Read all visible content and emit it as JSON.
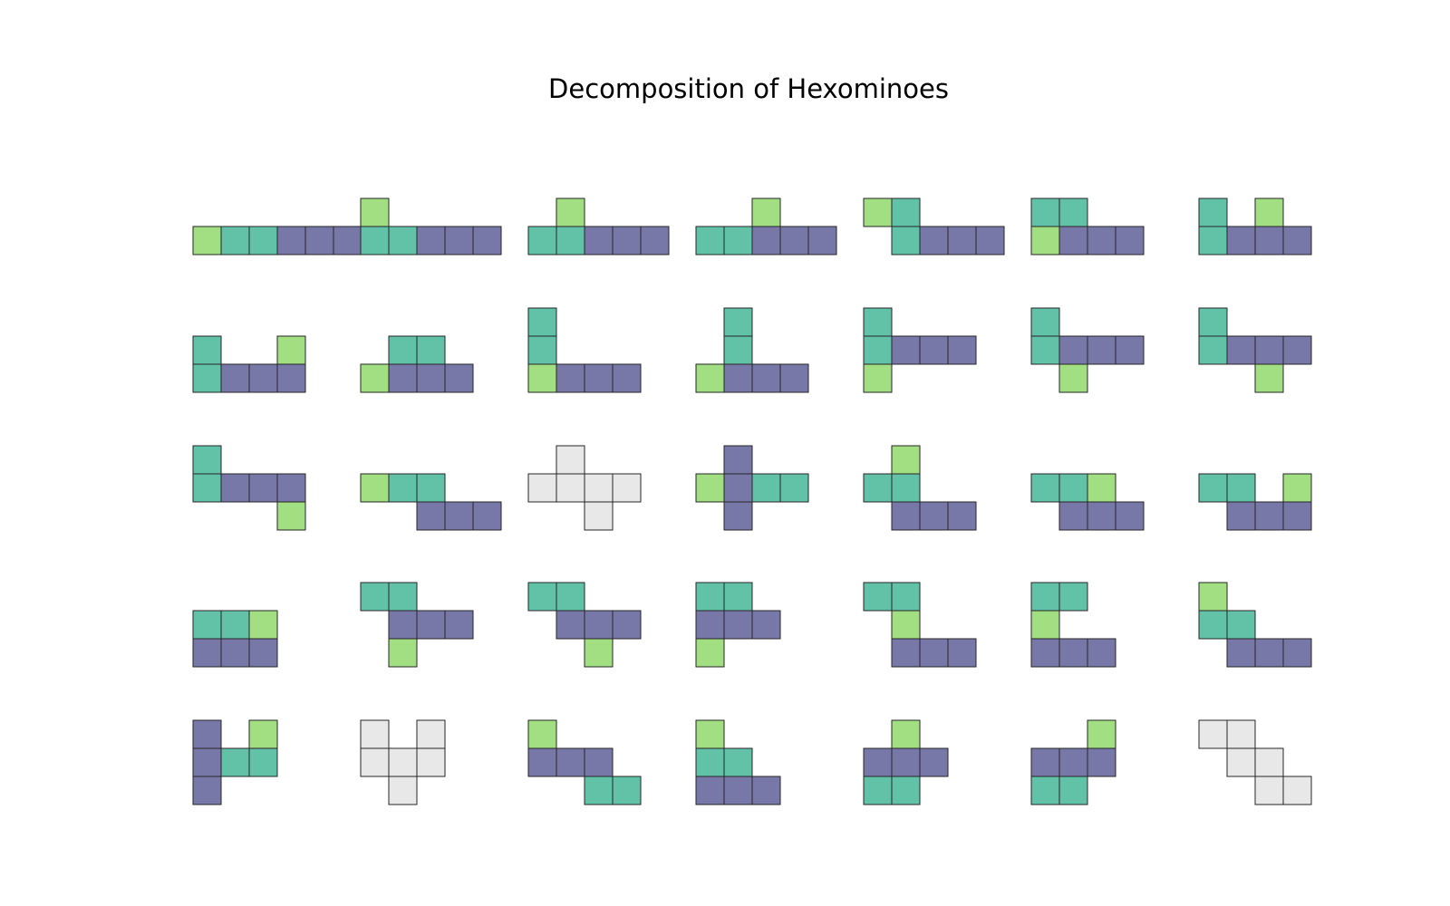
{
  "title": "Decomposition of Hexominoes",
  "colors": {
    "tetromino": "#7878a8",
    "domino": "#62c2a8",
    "monomino": "#a1df82",
    "undecomposed": "#e8e8e8",
    "border": "#262626"
  },
  "legend_roles": {
    "B": "tetromino",
    "T": "domino",
    "G": "monomino",
    "E": "undecomposed"
  },
  "hexominoes": [
    {
      "rows": [
        "GTTBBB"
      ]
    },
    {
      "rows": [
        "G....",
        "TTBBB"
      ]
    },
    {
      "rows": [
        ".G...",
        "TTBBB"
      ]
    },
    {
      "rows": [
        "..G..",
        "TTBBB"
      ]
    },
    {
      "rows": [
        "GT...",
        ".TBBB"
      ]
    },
    {
      "rows": [
        "TT..",
        "GBBB"
      ]
    },
    {
      "rows": [
        "T.G.",
        "TBBB"
      ]
    },
    {
      "rows": [
        "T..G",
        "TBBB"
      ]
    },
    {
      "rows": [
        ".TT.",
        "GBBB"
      ]
    },
    {
      "rows": [
        "T...",
        "T...",
        "GBBB"
      ]
    },
    {
      "rows": [
        ".T..",
        ".T..",
        "GBBB"
      ]
    },
    {
      "rows": [
        "T...",
        "TBBB",
        "G..."
      ]
    },
    {
      "rows": [
        "T...",
        "TBBB",
        ".G.."
      ]
    },
    {
      "rows": [
        "T...",
        "TBBB",
        "..G."
      ]
    },
    {
      "rows": [
        "T...",
        "TBBB",
        "...G"
      ]
    },
    {
      "rows": [
        "GTT..",
        "..BBB"
      ]
    },
    {
      "rows": [
        ".E..",
        "EEEE",
        "..E."
      ]
    },
    {
      "rows": [
        ".B..",
        "GBTT",
        ".B.."
      ]
    },
    {
      "rows": [
        ".G..",
        "TT..",
        ".BBB"
      ]
    },
    {
      "rows": [
        "TTG.",
        ".BBB"
      ]
    },
    {
      "rows": [
        "TT.G",
        ".BBB"
      ]
    },
    {
      "rows": [
        "TTG",
        "BBB"
      ]
    },
    {
      "rows": [
        "TT..",
        ".BBB",
        ".G.."
      ]
    },
    {
      "rows": [
        "TT..",
        ".BBB",
        "..G."
      ]
    },
    {
      "rows": [
        "TT.",
        "BBB",
        "G.."
      ]
    },
    {
      "rows": [
        "TT..",
        ".G..",
        ".BBB"
      ]
    },
    {
      "rows": [
        "TT.",
        "G..",
        "BBB"
      ]
    },
    {
      "rows": [
        "G...",
        "TT..",
        ".BBB"
      ]
    },
    {
      "rows": [
        "B.G",
        "BTT",
        "B.."
      ]
    },
    {
      "rows": [
        "E.E",
        "EEE",
        ".E."
      ]
    },
    {
      "rows": [
        "G...",
        "BBB.",
        "..TT"
      ]
    },
    {
      "rows": [
        "G..",
        "TT.",
        "BBB"
      ]
    },
    {
      "rows": [
        ".G.",
        "BBB",
        "TT."
      ]
    },
    {
      "rows": [
        "..G",
        "BBB",
        "TT."
      ]
    },
    {
      "rows": [
        "EE..",
        ".EE.",
        "..EE"
      ]
    }
  ]
}
